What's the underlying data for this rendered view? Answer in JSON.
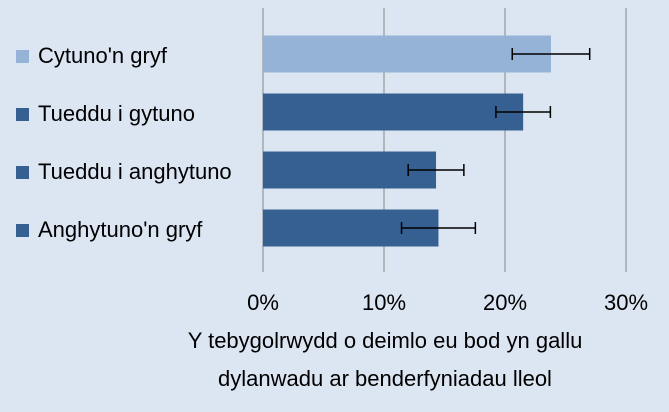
{
  "chart_data": {
    "type": "hbar",
    "categories": [
      "Cytuno'n gryf",
      "Tueddu i gytuno",
      "Tueddu i anghytuno",
      "Anghytuno'n gryf"
    ],
    "values": [
      23.8,
      21.5,
      14.3,
      14.5
    ],
    "errors": [
      3.2,
      2.25,
      2.3,
      3.05
    ],
    "colors": [
      "#95b3d7",
      "#366092",
      "#366092",
      "#366092"
    ],
    "error_color": "#000000",
    "xlabel": [
      "Y tebygolrwydd o deimlo eu bod yn gallu",
      "dylanwadu ar benderfyniadau lleol"
    ],
    "xlim": [
      0,
      30
    ],
    "xticks": [
      {
        "value": 0,
        "label": "0%"
      },
      {
        "value": 10,
        "label": "10%"
      },
      {
        "value": 20,
        "label": "20%"
      },
      {
        "value": 30,
        "label": "30%"
      }
    ],
    "grid": true
  }
}
